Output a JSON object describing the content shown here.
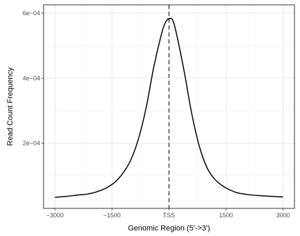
{
  "chart_data": {
    "type": "line",
    "xlabel": "Genomic Region (5'->3')",
    "ylabel": "Read Count Frequency",
    "xlim": [
      -3000,
      3000
    ],
    "ylim": [
      0,
      0.0006
    ],
    "x_ticks": [
      {
        "value": -3000,
        "label": "−3000"
      },
      {
        "value": -1500,
        "label": "−1500"
      },
      {
        "value": 0,
        "label": "TSS"
      },
      {
        "value": 1500,
        "label": "1500"
      },
      {
        "value": 3000,
        "label": "3000"
      }
    ],
    "y_ticks": [
      {
        "value": 0.0002,
        "label": "2e−04"
      },
      {
        "value": 0.0004,
        "label": "4e−04"
      },
      {
        "value": 0.0006,
        "label": "6e−04"
      }
    ],
    "grid": true,
    "vline": {
      "x": 0,
      "style": "dashed"
    },
    "series": [
      {
        "x": [
          -3000,
          -2700,
          -2400,
          -2100,
          -1800,
          -1600,
          -1400,
          -1200,
          -1000,
          -800,
          -600,
          -400,
          -200,
          -100,
          0,
          100,
          200,
          400,
          600,
          800,
          1000,
          1200,
          1400,
          1600,
          1800,
          2100,
          2400,
          2700,
          3000
        ],
        "y": [
          3.4e-05,
          3.7e-05,
          4.1e-05,
          4.5e-05,
          5.5e-05,
          6.6e-05,
          8.3e-05,
          0.00011,
          0.00015,
          0.000215,
          0.00031,
          0.000435,
          0.000535,
          0.00057,
          0.000583,
          0.000578,
          0.000535,
          0.00042,
          0.00029,
          0.00019,
          0.000125,
          9e-05,
          7e-05,
          5.7e-05,
          4.8e-05,
          4.2e-05,
          3.9e-05,
          3.7e-05,
          3.5e-05
        ],
        "color": "#000000"
      }
    ]
  }
}
